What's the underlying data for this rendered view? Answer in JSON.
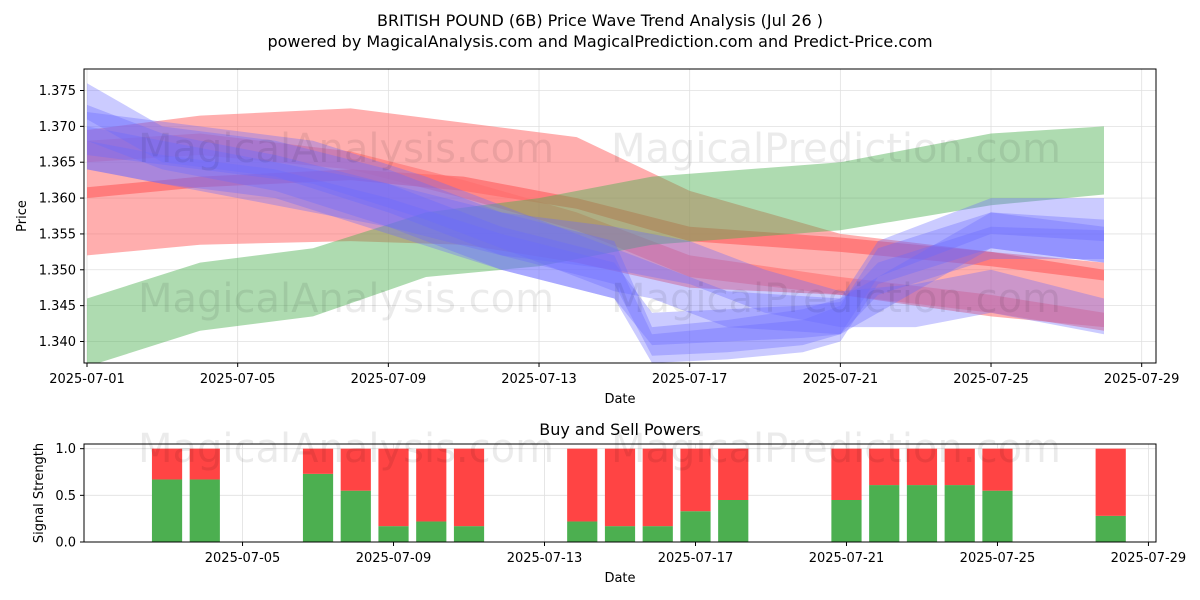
{
  "title_line1": "BRITISH POUND (6B) Price Wave Trend Analysis (Jul 26 )",
  "title_line2": "powered by MagicalAnalysis.com and MagicalPrediction.com and Predict-Price.com",
  "watermarks": [
    "MagicalAnalysis.com",
    "MagicalPrediction.com"
  ],
  "colors": {
    "buy": "#4caf50",
    "sell": "#ff4444",
    "band_red": "#ff6b6b",
    "band_green": "#4caf50",
    "band_blue": "#6b6bff",
    "grid": "#e0e0e0"
  },
  "chart_data": [
    {
      "type": "area",
      "title": "",
      "xlabel": "Date",
      "ylabel": "Price",
      "xlim": [
        "2025-07-01",
        "2025-07-29"
      ],
      "ylim": [
        1.337,
        1.378
      ],
      "x_ticks": [
        "2025-07-01",
        "2025-07-05",
        "2025-07-09",
        "2025-07-13",
        "2025-07-17",
        "2025-07-21",
        "2025-07-25",
        "2025-07-29"
      ],
      "y_ticks": [
        1.34,
        1.345,
        1.35,
        1.355,
        1.36,
        1.365,
        1.37,
        1.375
      ],
      "y_tick_labels": [
        "1.340",
        "1.345",
        "1.350",
        "1.355",
        "1.360",
        "1.365",
        "1.370",
        "1.375"
      ],
      "grid": true,
      "series": [
        {
          "color": "red",
          "opacity": 0.55,
          "x": [
            "2025-07-01",
            "2025-07-04",
            "2025-07-08",
            "2025-07-11",
            "2025-07-14",
            "2025-07-17",
            "2025-07-21",
            "2025-07-25",
            "2025-07-28"
          ],
          "upper": [
            1.3695,
            1.3715,
            1.3725,
            1.3705,
            1.3685,
            1.361,
            1.355,
            1.3525,
            1.351
          ],
          "lower": [
            1.352,
            1.3535,
            1.354,
            1.3535,
            1.351,
            1.3475,
            1.3465,
            1.3435,
            1.342
          ]
        },
        {
          "color": "red",
          "opacity": 0.75,
          "x": [
            "2025-07-01",
            "2025-07-04",
            "2025-07-08",
            "2025-07-11",
            "2025-07-14",
            "2025-07-17",
            "2025-07-21",
            "2025-07-25",
            "2025-07-28"
          ],
          "upper": [
            1.3615,
            1.363,
            1.364,
            1.363,
            1.36,
            1.356,
            1.3545,
            1.3525,
            1.35
          ],
          "lower": [
            1.36,
            1.3615,
            1.3625,
            1.361,
            1.3585,
            1.354,
            1.3525,
            1.3505,
            1.3485
          ]
        },
        {
          "color": "red",
          "opacity": 0.55,
          "x": [
            "2025-07-01",
            "2025-07-04",
            "2025-07-08",
            "2025-07-11",
            "2025-07-14",
            "2025-07-17",
            "2025-07-21",
            "2025-07-25",
            "2025-07-28"
          ],
          "upper": [
            1.368,
            1.369,
            1.3665,
            1.3625,
            1.358,
            1.352,
            1.349,
            1.3465,
            1.344
          ],
          "lower": [
            1.365,
            1.366,
            1.364,
            1.36,
            1.3555,
            1.349,
            1.3465,
            1.344,
            1.3415
          ]
        },
        {
          "color": "green",
          "opacity": 0.45,
          "x": [
            "2025-07-01",
            "2025-07-04",
            "2025-07-07",
            "2025-07-10",
            "2025-07-13",
            "2025-07-16",
            "2025-07-21",
            "2025-07-25",
            "2025-07-28"
          ],
          "upper": [
            1.346,
            1.351,
            1.353,
            1.358,
            1.36,
            1.363,
            1.365,
            1.369,
            1.37
          ],
          "lower": [
            1.3365,
            1.3415,
            1.3435,
            1.349,
            1.3505,
            1.3535,
            1.3555,
            1.359,
            1.3605
          ]
        },
        {
          "color": "blue",
          "opacity": 0.35,
          "x": [
            "2025-07-01",
            "2025-07-03",
            "2025-07-06",
            "2025-07-09",
            "2025-07-12",
            "2025-07-15",
            "2025-07-16",
            "2025-07-18",
            "2025-07-20",
            "2025-07-21",
            "2025-07-22",
            "2025-07-25",
            "2025-07-28"
          ],
          "upper": [
            1.376,
            1.37,
            1.368,
            1.364,
            1.358,
            1.354,
            1.342,
            1.343,
            1.3445,
            1.346,
            1.354,
            1.36,
            1.36
          ],
          "lower": [
            1.371,
            1.365,
            1.363,
            1.358,
            1.352,
            1.348,
            1.338,
            1.3385,
            1.3395,
            1.341,
            1.349,
            1.355,
            1.354
          ]
        },
        {
          "color": "blue",
          "opacity": 0.35,
          "x": [
            "2025-07-01",
            "2025-07-03",
            "2025-07-06",
            "2025-07-09",
            "2025-07-12",
            "2025-07-15",
            "2025-07-16",
            "2025-07-18",
            "2025-07-20",
            "2025-07-21",
            "2025-07-22",
            "2025-07-25",
            "2025-07-28"
          ],
          "upper": [
            1.373,
            1.369,
            1.366,
            1.362,
            1.356,
            1.352,
            1.341,
            1.342,
            1.343,
            1.345,
            1.353,
            1.358,
            1.357
          ],
          "lower": [
            1.368,
            1.364,
            1.361,
            1.356,
            1.35,
            1.346,
            1.337,
            1.3375,
            1.3385,
            1.34,
            1.348,
            1.353,
            1.351
          ]
        },
        {
          "color": "blue",
          "opacity": 0.35,
          "x": [
            "2025-07-01",
            "2025-07-03",
            "2025-07-06",
            "2025-07-09",
            "2025-07-12",
            "2025-07-15",
            "2025-07-16",
            "2025-07-18",
            "2025-07-20",
            "2025-07-21",
            "2025-07-22",
            "2025-07-25",
            "2025-07-28"
          ],
          "upper": [
            1.368,
            1.366,
            1.364,
            1.36,
            1.355,
            1.351,
            1.344,
            1.3445,
            1.345,
            1.3455,
            1.351,
            1.356,
            1.3555
          ],
          "lower": [
            1.364,
            1.362,
            1.36,
            1.355,
            1.35,
            1.346,
            1.3395,
            1.34,
            1.3405,
            1.341,
            1.3465,
            1.3515,
            1.3515
          ]
        },
        {
          "color": "blue",
          "opacity": 0.35,
          "x": [
            "2025-07-01",
            "2025-07-03",
            "2025-07-06",
            "2025-07-09",
            "2025-07-12",
            "2025-07-15",
            "2025-07-17",
            "2025-07-19",
            "2025-07-21",
            "2025-07-23",
            "2025-07-25",
            "2025-07-28"
          ],
          "upper": [
            1.37,
            1.368,
            1.365,
            1.362,
            1.358,
            1.356,
            1.354,
            1.35,
            1.347,
            1.348,
            1.35,
            1.346
          ],
          "lower": [
            1.364,
            1.362,
            1.359,
            1.356,
            1.352,
            1.35,
            1.348,
            1.344,
            1.342,
            1.342,
            1.344,
            1.341
          ]
        },
        {
          "color": "blue",
          "opacity": 0.35,
          "x": [
            "2025-07-01",
            "2025-07-04",
            "2025-07-07",
            "2025-07-10",
            "2025-07-13",
            "2025-07-15",
            "2025-07-16",
            "2025-07-18",
            "2025-07-21",
            "2025-07-23",
            "2025-07-25",
            "2025-07-28"
          ],
          "upper": [
            1.372,
            1.37,
            1.368,
            1.363,
            1.357,
            1.353,
            1.351,
            1.347,
            1.346,
            1.352,
            1.358,
            1.356
          ],
          "lower": [
            1.366,
            1.364,
            1.362,
            1.357,
            1.351,
            1.347,
            1.346,
            1.342,
            1.341,
            1.347,
            1.353,
            1.351
          ]
        }
      ]
    },
    {
      "type": "bar",
      "title": "Buy and Sell Powers",
      "xlabel": "Date",
      "ylabel": "Signal Strength",
      "xlim": [
        "2025-07-01",
        "2025-07-29"
      ],
      "ylim": [
        0,
        1.05
      ],
      "x_ticks": [
        "2025-07-05",
        "2025-07-09",
        "2025-07-13",
        "2025-07-17",
        "2025-07-21",
        "2025-07-25",
        "2025-07-29"
      ],
      "y_ticks": [
        0.0,
        0.5,
        1.0
      ],
      "y_tick_labels": [
        "0.0",
        "0.5",
        "1.0"
      ],
      "grid": true,
      "categories": [
        "2025-07-03",
        "2025-07-04",
        "2025-07-07",
        "2025-07-08",
        "2025-07-09",
        "2025-07-10",
        "2025-07-11",
        "2025-07-14",
        "2025-07-15",
        "2025-07-16",
        "2025-07-17",
        "2025-07-18",
        "2025-07-21",
        "2025-07-22",
        "2025-07-23",
        "2025-07-24",
        "2025-07-25",
        "2025-07-28"
      ],
      "series": [
        {
          "color": "green",
          "values": [
            0.67,
            0.67,
            0.73,
            0.55,
            0.17,
            0.22,
            0.17,
            0.22,
            0.17,
            0.17,
            0.33,
            0.45,
            0.45,
            0.61,
            0.61,
            0.61,
            0.55,
            0.28
          ]
        },
        {
          "color": "red",
          "values": [
            0.33,
            0.33,
            0.27,
            0.45,
            0.83,
            0.78,
            0.83,
            0.78,
            0.83,
            0.83,
            0.67,
            0.55,
            0.55,
            0.39,
            0.39,
            0.39,
            0.45,
            0.72
          ]
        }
      ]
    }
  ]
}
